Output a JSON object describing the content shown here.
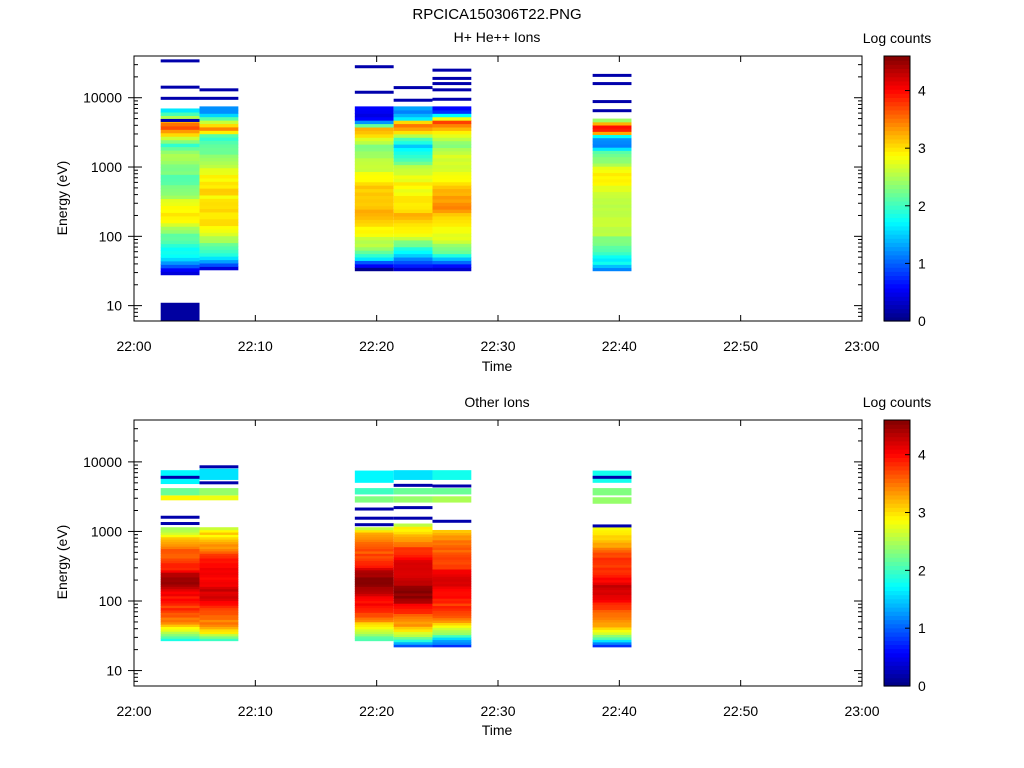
{
  "title": "RPCICA150306T22.PNG",
  "colorbar_label": "Log counts",
  "colorbar_ticks": [
    "0",
    "1",
    "2",
    "3",
    "4"
  ],
  "colormap": [
    "#000080",
    "#0000ff",
    "#0080ff",
    "#00ffff",
    "#80ff80",
    "#ffff00",
    "#ff8000",
    "#ff0000",
    "#800000"
  ],
  "chart_data": [
    {
      "type": "heatmap",
      "title": "H+ He++ Ions",
      "xlabel": "Time",
      "ylabel": "Energy (eV)",
      "x_ticks": [
        "22:00",
        "22:10",
        "22:20",
        "22:30",
        "22:40",
        "22:50",
        "23:00"
      ],
      "xlim": [
        "22:00",
        "23:00"
      ],
      "y_scale": "log",
      "ylim": [
        6,
        40000
      ],
      "y_ticks": [
        "10",
        "100",
        "1000",
        "10000"
      ],
      "clim": [
        0,
        4.6
      ],
      "columns": [
        {
          "t_start": "22:02.2",
          "t_end": "22:05.4",
          "emin": 28,
          "emax": 7000,
          "profile": [
            [
              28,
              0.1
            ],
            [
              38,
              0.9
            ],
            [
              45,
              1.4
            ],
            [
              55,
              1.7
            ],
            [
              75,
              2.0
            ],
            [
              120,
              2.4
            ],
            [
              200,
              2.9
            ],
            [
              350,
              2.6
            ],
            [
              600,
              2.3
            ],
            [
              900,
              2.1
            ],
            [
              1400,
              2.5
            ],
            [
              2000,
              1.9
            ],
            [
              3000,
              3.1
            ],
            [
              3800,
              3.9
            ],
            [
              4500,
              3.3
            ],
            [
              5500,
              2.2
            ],
            [
              6500,
              1.6
            ],
            [
              7000,
              1.6
            ]
          ],
          "extra": [
            {
              "e1": 6,
              "e2": 11,
              "v": 0.15
            }
          ],
          "lines": [
            {
              "e": 4700,
              "v": 0.2
            },
            {
              "e": 9800,
              "v": 0.2
            },
            {
              "e": 14200,
              "v": 0.2
            },
            {
              "e": 34000,
              "v": 0.2
            }
          ]
        },
        {
          "t_start": "22:05.4",
          "t_end": "22:08.6",
          "emin": 33,
          "emax": 7500,
          "profile": [
            [
              33,
              0.2
            ],
            [
              40,
              1.1
            ],
            [
              50,
              1.8
            ],
            [
              70,
              2.2
            ],
            [
              120,
              2.7
            ],
            [
              200,
              3.1
            ],
            [
              400,
              3.0
            ],
            [
              700,
              2.8
            ],
            [
              1200,
              2.6
            ],
            [
              2000,
              2.2
            ],
            [
              2800,
              1.8
            ],
            [
              3500,
              3.4
            ],
            [
              4200,
              2.9
            ],
            [
              5000,
              2.0
            ],
            [
              6000,
              1.4
            ],
            [
              7500,
              1.3
            ]
          ],
          "lines": [
            {
              "e": 9800,
              "v": 0.2
            },
            {
              "e": 13000,
              "v": 0.2
            }
          ]
        },
        {
          "t_start": "22:18.2",
          "t_end": "22:21.4",
          "emin": 32,
          "emax": 7500,
          "profile": [
            [
              32,
              0.1
            ],
            [
              40,
              0.6
            ],
            [
              50,
              1.7
            ],
            [
              70,
              2.4
            ],
            [
              110,
              2.9
            ],
            [
              180,
              3.2
            ],
            [
              300,
              3.0
            ],
            [
              500,
              3.2
            ],
            [
              800,
              2.9
            ],
            [
              1300,
              2.5
            ],
            [
              2000,
              2.1
            ],
            [
              2800,
              3.1
            ],
            [
              3600,
              3.4
            ],
            [
              4200,
              1.8
            ],
            [
              5000,
              0.6
            ],
            [
              6000,
              0.3
            ],
            [
              7500,
              0.5
            ]
          ],
          "lines": [
            {
              "e": 12000,
              "v": 0.2
            },
            {
              "e": 28000,
              "v": 0.2
            }
          ]
        },
        {
          "t_start": "22:21.4",
          "t_end": "22:24.6",
          "emin": 32,
          "emax": 7500,
          "profile": [
            [
              32,
              0.1
            ],
            [
              40,
              0.8
            ],
            [
              55,
              1.6
            ],
            [
              80,
              2.4
            ],
            [
              130,
              2.9
            ],
            [
              220,
              3.2
            ],
            [
              400,
              3.0
            ],
            [
              700,
              2.7
            ],
            [
              1200,
              2.3
            ],
            [
              2000,
              1.6
            ],
            [
              2800,
              2.4
            ],
            [
              3600,
              3.3
            ],
            [
              4300,
              3.6
            ],
            [
              5000,
              1.6
            ],
            [
              6000,
              1.2
            ],
            [
              7500,
              1.5
            ]
          ],
          "lines": [
            {
              "e": 9200,
              "v": 0.2
            },
            {
              "e": 14000,
              "v": 0.2
            }
          ]
        },
        {
          "t_start": "22:24.6",
          "t_end": "22:27.8",
          "emin": 32,
          "emax": 7500,
          "profile": [
            [
              32,
              0.2
            ],
            [
              42,
              1.0
            ],
            [
              55,
              1.9
            ],
            [
              80,
              2.5
            ],
            [
              130,
              3.0
            ],
            [
              250,
              3.3
            ],
            [
              450,
              3.1
            ],
            [
              800,
              2.9
            ],
            [
              1400,
              2.6
            ],
            [
              2200,
              2.2
            ],
            [
              3000,
              2.9
            ],
            [
              3800,
              3.4
            ],
            [
              4500,
              3.9
            ],
            [
              5500,
              2.0
            ],
            [
              6500,
              0.6
            ],
            [
              7500,
              0.5
            ]
          ],
          "lines": [
            {
              "e": 9500,
              "v": 0.2
            },
            {
              "e": 13000,
              "v": 0.2
            },
            {
              "e": 16000,
              "v": 0.2
            },
            {
              "e": 19000,
              "v": 0.2
            },
            {
              "e": 25000,
              "v": 0.2
            }
          ]
        },
        {
          "t_start": "22:37.8",
          "t_end": "22:41.0",
          "emin": 32,
          "emax": 5000,
          "profile": [
            [
              32,
              1.0
            ],
            [
              40,
              1.6
            ],
            [
              55,
              2.0
            ],
            [
              80,
              2.3
            ],
            [
              130,
              2.5
            ],
            [
              250,
              2.6
            ],
            [
              500,
              2.7
            ],
            [
              800,
              2.8
            ],
            [
              1200,
              2.5
            ],
            [
              1700,
              2.1
            ],
            [
              2200,
              1.0
            ],
            [
              2700,
              1.2
            ],
            [
              3200,
              3.6
            ],
            [
              3800,
              3.9
            ],
            [
              4500,
              2.9
            ],
            [
              5000,
              1.8
            ]
          ],
          "lines": [
            {
              "e": 6500,
              "v": 0.2
            },
            {
              "e": 8800,
              "v": 0.2
            },
            {
              "e": 16000,
              "v": 0.2
            },
            {
              "e": 21000,
              "v": 0.2
            }
          ]
        }
      ]
    },
    {
      "type": "heatmap",
      "title": "Other Ions",
      "xlabel": "Time",
      "ylabel": "Energy (eV)",
      "x_ticks": [
        "22:00",
        "22:10",
        "22:20",
        "22:30",
        "22:40",
        "22:50",
        "23:00"
      ],
      "xlim": [
        "22:00",
        "23:00"
      ],
      "y_scale": "log",
      "ylim": [
        6,
        40000
      ],
      "y_ticks": [
        "10",
        "100",
        "1000",
        "10000"
      ],
      "clim": [
        0,
        4.6
      ],
      "columns": [
        {
          "t_start": "22:02.2",
          "t_end": "22:05.4",
          "emin": 27,
          "emax": 1150,
          "profile": [
            [
              27,
              1.8
            ],
            [
              34,
              2.6
            ],
            [
              45,
              3.2
            ],
            [
              70,
              3.6
            ],
            [
              100,
              4.0
            ],
            [
              150,
              4.2
            ],
            [
              200,
              4.4
            ],
            [
              300,
              4.0
            ],
            [
              500,
              3.6
            ],
            [
              800,
              3.1
            ],
            [
              1150,
              2.5
            ]
          ],
          "extra": [
            {
              "e1": 2800,
              "e2": 3300,
              "v": 2.9
            },
            {
              "e1": 3300,
              "e2": 4200,
              "v": 2.2
            },
            {
              "e1": 4800,
              "e2": 7600,
              "v": 1.7
            }
          ],
          "lines": [
            {
              "e": 1300,
              "v": 0.2
            },
            {
              "e": 1600,
              "v": 0.2
            },
            {
              "e": 6000,
              "v": 0.2
            }
          ]
        },
        {
          "t_start": "22:05.4",
          "t_end": "22:08.6",
          "emin": 27,
          "emax": 1150,
          "profile": [
            [
              27,
              1.7
            ],
            [
              34,
              2.7
            ],
            [
              45,
              3.4
            ],
            [
              70,
              3.8
            ],
            [
              110,
              4.1
            ],
            [
              170,
              4.2
            ],
            [
              260,
              4.1
            ],
            [
              400,
              3.8
            ],
            [
              650,
              3.4
            ],
            [
              1000,
              2.9
            ],
            [
              1150,
              2.3
            ]
          ],
          "extra": [
            {
              "e1": 2800,
              "e2": 3300,
              "v": 2.8
            },
            {
              "e1": 3300,
              "e2": 4200,
              "v": 2.4
            },
            {
              "e1": 5500,
              "e2": 8000,
              "v": 1.6
            }
          ],
          "lines": [
            {
              "e": 5000,
              "v": 0.2
            },
            {
              "e": 8500,
              "v": 0.2
            }
          ]
        },
        {
          "t_start": "22:18.2",
          "t_end": "22:21.4",
          "emin": 27,
          "emax": 1150,
          "profile": [
            [
              27,
              1.9
            ],
            [
              34,
              2.5
            ],
            [
              45,
              3.1
            ],
            [
              70,
              3.7
            ],
            [
              100,
              4.1
            ],
            [
              150,
              4.5
            ],
            [
              220,
              4.4
            ],
            [
              350,
              4.0
            ],
            [
              600,
              3.6
            ],
            [
              1000,
              3.1
            ],
            [
              1150,
              2.6
            ]
          ],
          "extra": [
            {
              "e1": 2600,
              "e2": 3200,
              "v": 2.3
            },
            {
              "e1": 3400,
              "e2": 4200,
              "v": 2.0
            },
            {
              "e1": 5000,
              "e2": 7500,
              "v": 1.7
            }
          ],
          "lines": [
            {
              "e": 1250,
              "v": 0.2
            },
            {
              "e": 1550,
              "v": 0.2
            },
            {
              "e": 2100,
              "v": 0.2
            }
          ]
        },
        {
          "t_start": "22:21.4",
          "t_end": "22:24.6",
          "emin": 22,
          "emax": 1300,
          "profile": [
            [
              22,
              0.9
            ],
            [
              27,
              1.7
            ],
            [
              34,
              2.6
            ],
            [
              45,
              3.2
            ],
            [
              70,
              3.9
            ],
            [
              110,
              4.4
            ],
            [
              170,
              4.5
            ],
            [
              260,
              4.3
            ],
            [
              400,
              4.0
            ],
            [
              700,
              3.5
            ],
            [
              1100,
              3.0
            ],
            [
              1300,
              2.2
            ]
          ],
          "extra": [
            {
              "e1": 2600,
              "e2": 3200,
              "v": 2.4
            },
            {
              "e1": 3400,
              "e2": 4200,
              "v": 2.2
            },
            {
              "e1": 5500,
              "e2": 7600,
              "v": 1.6
            }
          ],
          "lines": [
            {
              "e": 1550,
              "v": 0.2
            },
            {
              "e": 2200,
              "v": 0.2
            },
            {
              "e": 4600,
              "v": 0.2
            }
          ]
        },
        {
          "t_start": "22:24.6",
          "t_end": "22:27.8",
          "emin": 22,
          "emax": 1050,
          "profile": [
            [
              22,
              0.5
            ],
            [
              27,
              1.4
            ],
            [
              34,
              2.4
            ],
            [
              45,
              3.1
            ],
            [
              70,
              3.7
            ],
            [
              110,
              4.0
            ],
            [
              170,
              4.2
            ],
            [
              260,
              4.0
            ],
            [
              400,
              3.8
            ],
            [
              700,
              3.4
            ],
            [
              1050,
              3.1
            ]
          ],
          "extra": [
            {
              "e1": 2600,
              "e2": 3200,
              "v": 2.5
            },
            {
              "e1": 3400,
              "e2": 4200,
              "v": 2.2
            },
            {
              "e1": 5500,
              "e2": 7600,
              "v": 1.8
            }
          ],
          "lines": [
            {
              "e": 1400,
              "v": 0.2
            },
            {
              "e": 4500,
              "v": 0.2
            }
          ]
        },
        {
          "t_start": "22:37.8",
          "t_end": "22:41.0",
          "emin": 22,
          "emax": 1150,
          "profile": [
            [
              22,
              0.6
            ],
            [
              27,
              1.7
            ],
            [
              34,
              2.6
            ],
            [
              45,
              3.2
            ],
            [
              70,
              3.7
            ],
            [
              110,
              4.1
            ],
            [
              170,
              4.2
            ],
            [
              260,
              4.0
            ],
            [
              400,
              3.7
            ],
            [
              700,
              3.3
            ],
            [
              1150,
              2.9
            ]
          ],
          "extra": [
            {
              "e1": 2500,
              "e2": 3100,
              "v": 2.4
            },
            {
              "e1": 3300,
              "e2": 4200,
              "v": 2.3
            },
            {
              "e1": 5000,
              "e2": 7500,
              "v": 1.8
            }
          ],
          "lines": [
            {
              "e": 1200,
              "v": 0.2
            },
            {
              "e": 6000,
              "v": 0.2
            }
          ]
        }
      ]
    }
  ]
}
